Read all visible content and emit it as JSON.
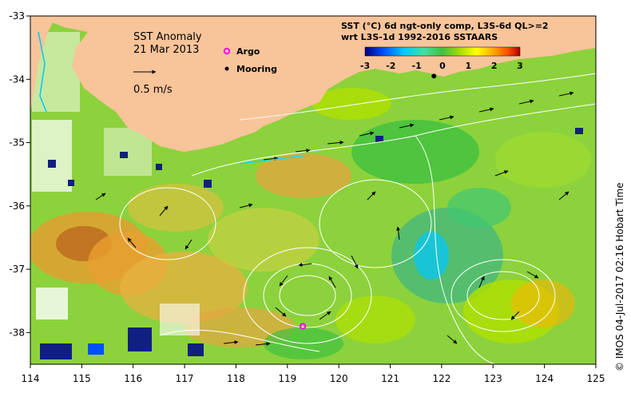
{
  "map": {
    "title": "SST Anomaly",
    "date": "21 Mar 2013",
    "scale_label": "0.5 m/s",
    "legend": [
      {
        "label": "Argo",
        "marker_color": "#ff00ff",
        "icon": "circle-marker-icon"
      },
      {
        "label": "Mooring",
        "marker_color": "#000000",
        "icon": "dot-marker-icon"
      }
    ],
    "product_line1": "SST (°C) 6d ngt-only comp, L3S-6d QL>=2",
    "product_line2": "wrt L3S-1d 1992-2016 SSTAARS",
    "credit": "© IMOS 04-Jul-2017 02:16 Hobart Time",
    "colors": {
      "land": "#f8c49a",
      "ocean_base": "#8cd23c",
      "contour": "#ffffff",
      "arrow": "#000000"
    }
  },
  "chart_data": {
    "type": "heatmap",
    "xlim": [
      114,
      125
    ],
    "ylim": [
      -38.5,
      -33
    ],
    "x_ticks": [
      "114",
      "115",
      "116",
      "117",
      "118",
      "119",
      "120",
      "121",
      "122",
      "123",
      "124",
      "125"
    ],
    "y_ticks": [
      "-33",
      "-34",
      "-35",
      "-36",
      "-37",
      "-38"
    ],
    "colorbar": {
      "min": -3,
      "max": 3,
      "ticks": [
        "-3",
        "-2",
        "-1",
        "0",
        "1",
        "2",
        "3"
      ],
      "colors": [
        "#000080",
        "#0050ff",
        "#00c8ff",
        "#40e0a0",
        "#40c040",
        "#b0e000",
        "#ffff00",
        "#ffb000",
        "#ff5000",
        "#b00000"
      ]
    },
    "argo_float": {
      "lon": 119.3,
      "lat": -37.9
    },
    "mooring": {
      "lon": 121.85,
      "lat": -33.95
    }
  }
}
